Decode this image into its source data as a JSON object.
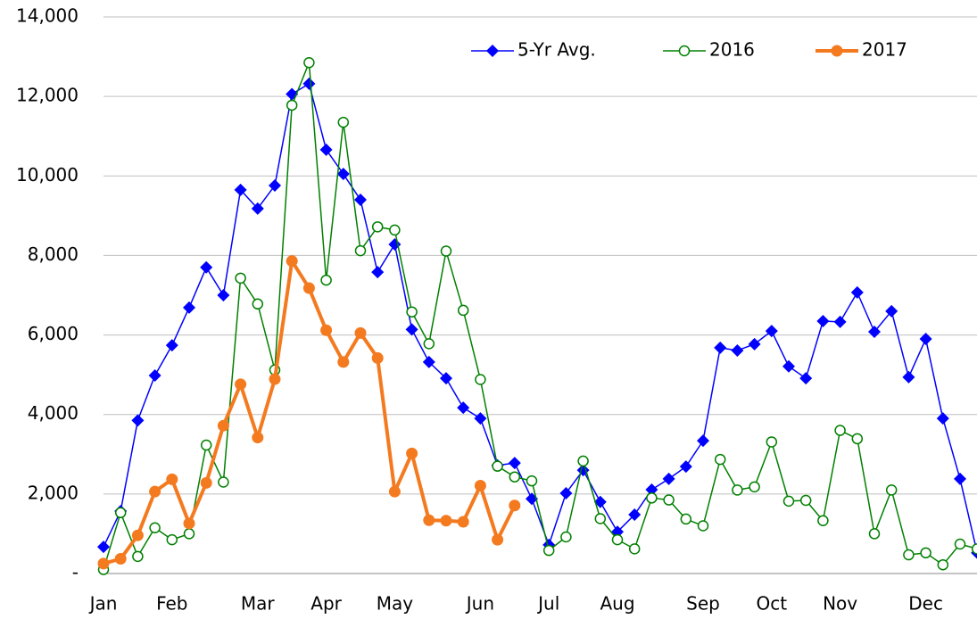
{
  "chart_data": {
    "type": "line",
    "categories": [
      "Jan",
      null,
      null,
      null,
      "Feb",
      null,
      null,
      null,
      null,
      "Mar",
      null,
      null,
      null,
      "Apr",
      null,
      null,
      null,
      "May",
      null,
      null,
      null,
      null,
      "Jun",
      null,
      null,
      null,
      "Jul",
      null,
      null,
      null,
      "Aug",
      null,
      null,
      null,
      null,
      "Sep",
      null,
      null,
      null,
      "Oct",
      null,
      null,
      null,
      "Nov",
      null,
      null,
      null,
      null,
      "Dec",
      null,
      null,
      null
    ],
    "series": [
      {
        "name": "5-Yr Avg.",
        "color": "#0000ff",
        "marker": "diamond",
        "values": [
          670,
          1570,
          3850,
          4980,
          5740,
          6690,
          7700,
          7000,
          9650,
          9180,
          9760,
          12060,
          12320,
          10660,
          10050,
          9400,
          7580,
          8280,
          6140,
          5320,
          4910,
          4170,
          3900,
          2720,
          2780,
          1880,
          720,
          2020,
          2600,
          1800,
          1050,
          1480,
          2110,
          2380,
          2690,
          3340,
          5680,
          5610,
          5770,
          6100,
          5210,
          4910,
          6350,
          6330,
          7070,
          6080,
          6600,
          4940,
          5900,
          3900,
          2380,
          520
        ]
      },
      {
        "name": "2016",
        "color": "#008000",
        "marker": "open-circle",
        "values": [
          100,
          1530,
          430,
          1150,
          850,
          1000,
          3230,
          2300,
          7430,
          6780,
          5120,
          11780,
          12850,
          7380,
          11350,
          8120,
          8720,
          8640,
          6580,
          5780,
          8110,
          6620,
          4880,
          2700,
          2430,
          2330,
          580,
          920,
          2830,
          1380,
          850,
          620,
          1900,
          1850,
          1370,
          1200,
          2870,
          2100,
          2180,
          3310,
          1820,
          1840,
          1330,
          3600,
          3390,
          1000,
          2100,
          470,
          520,
          220,
          740,
          620
        ]
      },
      {
        "name": "2017",
        "color": "#f47a20",
        "marker": "circle",
        "values": [
          250,
          370,
          960,
          2060,
          2370,
          1260,
          2280,
          3720,
          4760,
          3420,
          4890,
          7860,
          7180,
          6120,
          5320,
          6050,
          5420,
          2060,
          3020,
          1340,
          1330,
          1300,
          2210,
          850,
          1710,
          null,
          null,
          null,
          null,
          null,
          null,
          null,
          null,
          null,
          null,
          null,
          null,
          null,
          null,
          null,
          null,
          null,
          null,
          null,
          null,
          null,
          null,
          null,
          null,
          null,
          null,
          null
        ]
      }
    ],
    "ylim": [
      0,
      14000
    ],
    "yticks": [
      {
        "value": 0,
        "label": "-"
      },
      {
        "value": 2000,
        "label": "2,000"
      },
      {
        "value": 4000,
        "label": "4,000"
      },
      {
        "value": 6000,
        "label": "6,000"
      },
      {
        "value": 8000,
        "label": "8,000"
      },
      {
        "value": 10000,
        "label": "10,000"
      },
      {
        "value": 12000,
        "label": "12,000"
      },
      {
        "value": 14000,
        "label": "14,000"
      }
    ],
    "grid": true,
    "legend": "top-right"
  }
}
